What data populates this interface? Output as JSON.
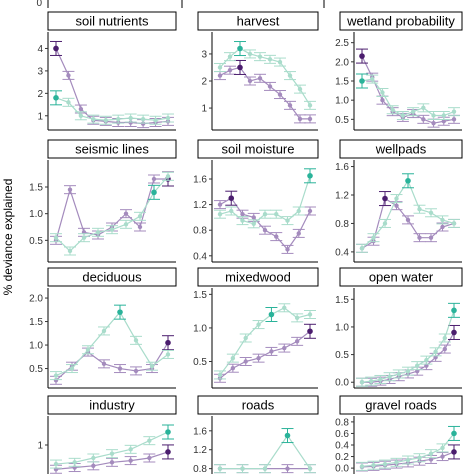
{
  "figure": {
    "ylabel": "% deviance explained",
    "colors": {
      "purple": "#4b1d6e",
      "teal": "#2ab39a",
      "light_purple": "#a48bbd",
      "light_teal": "#a9dccb"
    }
  },
  "chart_data": [
    {
      "type": "line",
      "title": "soil nutrients",
      "row": 0,
      "col": 0,
      "ylim": [
        0.5,
        4.6
      ],
      "ticks": [
        1,
        2,
        3,
        4
      ],
      "series": [
        {
          "values": [
            4.0,
            2.8,
            1.3,
            0.8,
            0.75,
            0.7,
            0.7,
            0.65,
            0.7,
            0.75
          ],
          "highlight": [
            0
          ]
        },
        {
          "values": [
            1.8,
            1.6,
            1.0,
            0.85,
            0.8,
            0.85,
            0.9,
            0.85,
            0.8,
            0.9
          ],
          "highlight": [
            0
          ]
        }
      ]
    },
    {
      "type": "line",
      "title": "harvest",
      "row": 0,
      "col": 1,
      "ylim": [
        0.3,
        3.7
      ],
      "ticks": [
        1,
        2,
        3
      ],
      "series": [
        {
          "values": [
            2.2,
            2.4,
            2.5,
            2.0,
            2.1,
            1.8,
            1.5,
            1.1,
            0.6,
            0.6
          ],
          "highlight": [
            2
          ]
        },
        {
          "values": [
            2.5,
            2.9,
            3.2,
            3.0,
            2.9,
            2.8,
            2.7,
            2.2,
            1.7,
            1.1
          ],
          "highlight": [
            2
          ]
        }
      ]
    },
    {
      "type": "line",
      "title": "wetland probability",
      "row": 0,
      "col": 2,
      "ylim": [
        0.3,
        2.7
      ],
      "ticks": [
        0.5,
        1.0,
        1.5,
        2.0,
        2.5
      ],
      "series": [
        {
          "values": [
            2.15,
            1.6,
            1.0,
            0.7,
            0.55,
            0.65,
            0.5,
            0.4,
            0.45,
            0.5
          ],
          "highlight": [
            0
          ]
        },
        {
          "values": [
            1.5,
            1.55,
            1.2,
            0.75,
            0.6,
            0.7,
            0.8,
            0.6,
            0.6,
            0.7
          ],
          "highlight": [
            0
          ]
        }
      ]
    },
    {
      "type": "line",
      "title": "seismic lines",
      "row": 1,
      "col": 0,
      "ylim": [
        0.15,
        1.95
      ],
      "ticks": [
        0.5,
        1.0,
        1.5
      ],
      "series": [
        {
          "values": [
            0.5,
            1.45,
            0.65,
            0.6,
            0.75,
            1.0,
            0.75,
            1.65,
            1.65
          ],
          "highlight": [
            8
          ]
        },
        {
          "values": [
            0.55,
            0.3,
            0.55,
            0.65,
            0.7,
            0.8,
            0.95,
            1.4,
            1.7
          ],
          "highlight": [
            7
          ]
        }
      ]
    },
    {
      "type": "line",
      "title": "soil moisture",
      "row": 1,
      "col": 1,
      "ylim": [
        0.35,
        1.85
      ],
      "ticks": [
        0.4,
        0.8,
        1.2,
        1.6
      ],
      "series": [
        {
          "values": [
            1.2,
            1.3,
            1.05,
            1.0,
            0.8,
            0.7,
            0.5,
            0.75,
            1.1
          ],
          "highlight": [
            1
          ]
        },
        {
          "values": [
            1.05,
            1.1,
            0.95,
            0.9,
            1.05,
            1.05,
            0.95,
            1.1,
            1.65
          ],
          "highlight": [
            8
          ]
        }
      ]
    },
    {
      "type": "line",
      "title": "wellpads",
      "row": 1,
      "col": 2,
      "ylim": [
        0.3,
        1.65
      ],
      "ticks": [
        0.4,
        0.8,
        1.2,
        1.6
      ],
      "series": [
        {
          "values": [
            0.45,
            0.55,
            1.15,
            1.05,
            0.85,
            0.6,
            0.6,
            0.75,
            0.8
          ],
          "highlight": [
            2
          ]
        },
        {
          "values": [
            0.45,
            0.6,
            0.8,
            1.15,
            1.4,
            1.0,
            0.95,
            0.85,
            0.8
          ],
          "highlight": [
            4
          ]
        }
      ]
    },
    {
      "type": "line",
      "title": "deciduous",
      "row": 2,
      "col": 0,
      "ylim": [
        0.15,
        2.15
      ],
      "ticks": [
        0.5,
        1.0,
        1.5,
        2.0
      ],
      "series": [
        {
          "values": [
            0.25,
            0.55,
            0.85,
            0.6,
            0.5,
            0.45,
            0.5,
            1.05
          ],
          "highlight": [
            7
          ]
        },
        {
          "values": [
            0.35,
            0.5,
            0.9,
            1.3,
            1.7,
            1.1,
            0.55,
            0.8
          ],
          "highlight": [
            4
          ]
        }
      ]
    },
    {
      "type": "line",
      "title": "mixedwood",
      "row": 2,
      "col": 1,
      "ylim": [
        0.15,
        1.55
      ],
      "ticks": [
        0.5,
        1.0,
        1.5
      ],
      "series": [
        {
          "values": [
            0.25,
            0.4,
            0.5,
            0.55,
            0.65,
            0.7,
            0.8,
            0.95
          ],
          "highlight": [
            7
          ]
        },
        {
          "values": [
            0.3,
            0.55,
            0.85,
            1.05,
            1.2,
            1.3,
            1.15,
            1.2
          ],
          "highlight": [
            4
          ]
        }
      ]
    },
    {
      "type": "line",
      "title": "open water",
      "row": 2,
      "col": 2,
      "ylim": [
        -0.05,
        1.65
      ],
      "ticks": [
        0.0,
        0.5,
        1.0,
        1.5
      ],
      "series": [
        {
          "values": [
            0.0,
            0.0,
            0.02,
            0.05,
            0.1,
            0.15,
            0.2,
            0.3,
            0.45,
            0.6,
            0.9
          ],
          "highlight": [
            10
          ]
        },
        {
          "values": [
            0.0,
            0.02,
            0.05,
            0.1,
            0.15,
            0.2,
            0.3,
            0.4,
            0.55,
            0.8,
            1.3
          ],
          "highlight": [
            10
          ]
        }
      ]
    },
    {
      "type": "line",
      "title": "industry",
      "row": 3,
      "col": 0,
      "ylim": [
        0.7,
        1.3
      ],
      "ticks": [
        1.0
      ],
      "series": [
        {
          "values": [
            0.72,
            0.74,
            0.76,
            0.8,
            0.82,
            0.85,
            0.92
          ],
          "highlight": [
            6
          ]
        },
        {
          "values": [
            0.78,
            0.8,
            0.85,
            0.9,
            0.95,
            1.05,
            1.15
          ],
          "highlight": [
            6
          ]
        }
      ]
    },
    {
      "type": "line",
      "title": "roads",
      "row": 3,
      "col": 1,
      "ylim": [
        0.75,
        1.85
      ],
      "ticks": [
        0.8,
        1.2,
        1.6
      ],
      "series": [
        {
          "values": [
            0.8,
            0.8,
            0.8,
            0.8,
            0.8
          ],
          "highlight": []
        },
        {
          "values": [
            0.8,
            0.8,
            0.8,
            1.5,
            0.8
          ],
          "highlight": [
            3
          ]
        }
      ]
    },
    {
      "type": "line",
      "title": "gravel roads",
      "row": 3,
      "col": 2,
      "ylim": [
        -0.05,
        0.85
      ],
      "ticks": [
        0.0,
        0.2,
        0.4,
        0.6,
        0.8
      ],
      "series": [
        {
          "values": [
            0.02,
            0.03,
            0.05,
            0.07,
            0.09,
            0.12,
            0.15,
            0.2,
            0.28
          ],
          "highlight": [
            8
          ]
        },
        {
          "values": [
            0.03,
            0.05,
            0.07,
            0.1,
            0.14,
            0.18,
            0.25,
            0.35,
            0.6
          ],
          "highlight": [
            8
          ]
        }
      ]
    }
  ]
}
